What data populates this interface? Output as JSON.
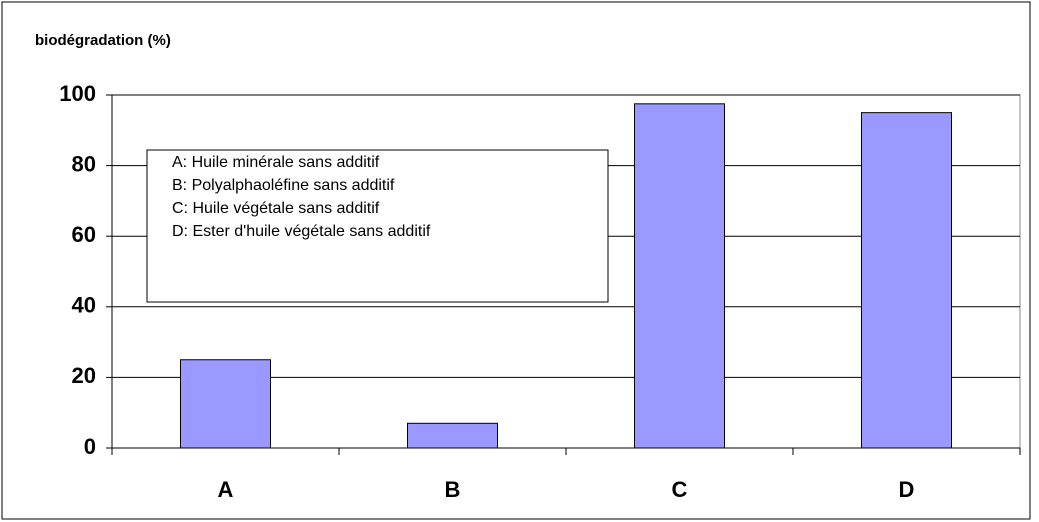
{
  "chart_data": {
    "type": "bar",
    "y_axis_label": "biodégradation (%)",
    "categories": [
      "A",
      "B",
      "C",
      "D"
    ],
    "values": [
      25,
      7,
      97.5,
      95
    ],
    "color": "#9999ff",
    "ylim": [
      0,
      100
    ],
    "yticks": [
      0,
      20,
      40,
      60,
      80,
      100
    ],
    "grid": true,
    "annotation_lines": [
      "A: Huile minérale sans additif",
      "B: Polyalphaoléfine sans additif",
      "C: Huile végétale sans additif",
      "D: Ester d'huile végétale sans additif"
    ]
  }
}
